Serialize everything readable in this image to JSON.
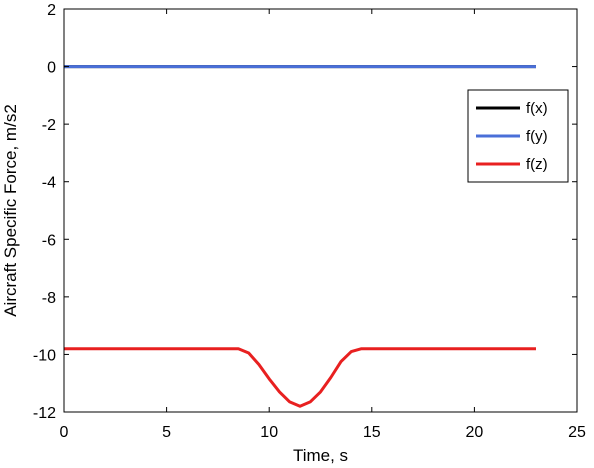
{
  "chart_data": {
    "type": "line",
    "xlabel": "Time, s",
    "ylabel": "Aircraft Specific Force, m/s2",
    "xlim": [
      0,
      25
    ],
    "ylim": [
      -12,
      2
    ],
    "xticks": [
      0,
      5,
      10,
      15,
      20,
      25
    ],
    "yticks": [
      2,
      0,
      -2,
      -4,
      -6,
      -8,
      -10,
      -12
    ],
    "grid": false,
    "legend_position": "right",
    "series": [
      {
        "name": "f(x)",
        "color": "#000000",
        "x": [
          0,
          23
        ],
        "y": [
          0,
          0
        ]
      },
      {
        "name": "f(y)",
        "color": "#4a6fd8",
        "x": [
          0,
          23
        ],
        "y": [
          0,
          0
        ]
      },
      {
        "name": "f(z)",
        "color": "#e82020",
        "x": [
          0,
          8.5,
          9.0,
          9.5,
          10.0,
          10.5,
          11.0,
          11.5,
          12.0,
          12.5,
          13.0,
          13.5,
          14.0,
          14.5,
          23
        ],
        "y": [
          -9.8,
          -9.8,
          -9.95,
          -10.35,
          -10.85,
          -11.3,
          -11.65,
          -11.8,
          -11.65,
          -11.3,
          -10.8,
          -10.25,
          -9.9,
          -9.8,
          -9.8
        ]
      }
    ]
  }
}
